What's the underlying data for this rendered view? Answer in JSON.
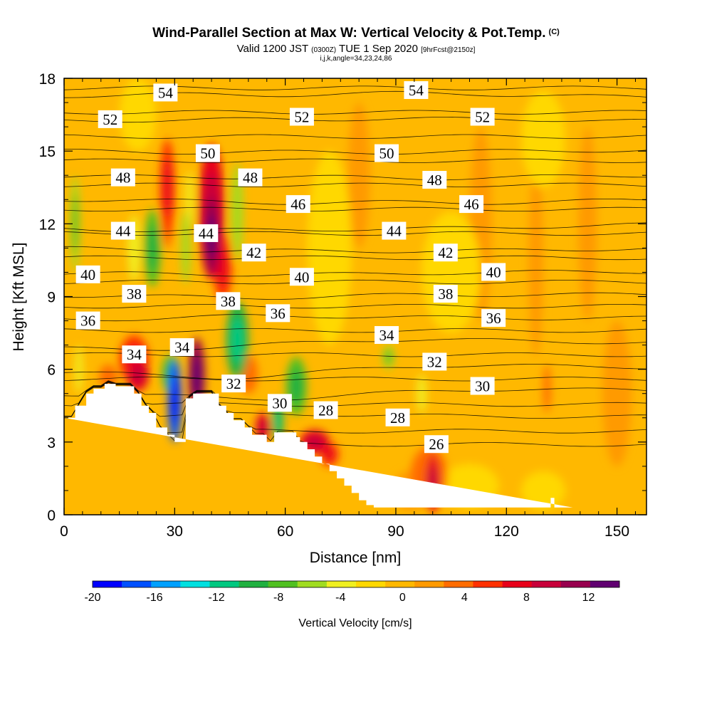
{
  "title": {
    "main": "Wind-Parallel Section at Max W: Vertical Velocity & Pot.Temp.",
    "copyright": "(C)",
    "valid_prefix": "Valid 1200 JST",
    "valid_utc": "(0300Z)",
    "valid_date": "TUE 1 Sep 2020",
    "forecast": "[9hrFcst@2150z]",
    "indices": "i,j,k,angle=34,23,24,86"
  },
  "chart_data": {
    "type": "heatmap",
    "xlabel": "Distance [nm]",
    "ylabel": "Height [Kft MSL]",
    "xlim": [
      0,
      158
    ],
    "ylim": [
      0,
      18
    ],
    "x_ticks": [
      0,
      30,
      60,
      90,
      120,
      150
    ],
    "y_ticks": [
      0,
      3,
      6,
      9,
      12,
      15,
      18
    ],
    "colorbar": {
      "title": "Vertical Velocity [cm/s]",
      "min": -20,
      "max": 14,
      "step": 2,
      "tick_values": [
        -20,
        -16,
        -12,
        -8,
        -4,
        0,
        4,
        8,
        12
      ],
      "colors": [
        "#0000ff",
        "#0050ff",
        "#00a0ff",
        "#00e0e0",
        "#00c880",
        "#20b040",
        "#50c020",
        "#a0dc20",
        "#f0f020",
        "#ffd800",
        "#ffb800",
        "#ff9a00",
        "#ff6c00",
        "#ff3000",
        "#e8001a",
        "#c8003a",
        "#98004e",
        "#600070"
      ]
    },
    "background_value_cm_s": 0,
    "terrain_profile": {
      "x": [
        0,
        3,
        3,
        6,
        6,
        8,
        8,
        11,
        11,
        14,
        14,
        19,
        19,
        21,
        21,
        23,
        23,
        25,
        25,
        26,
        26,
        28,
        28,
        30,
        30,
        32,
        32,
        33,
        33,
        35,
        35,
        42,
        42,
        44,
        44,
        46,
        46,
        49,
        49,
        51,
        51,
        53,
        53,
        55,
        55,
        57,
        57,
        59,
        59,
        63,
        63,
        64,
        64,
        66,
        66,
        68,
        68,
        70,
        70,
        72,
        72,
        74,
        74,
        76,
        76,
        78,
        78,
        80,
        80,
        82,
        82,
        84,
        84,
        86,
        86,
        88,
        88,
        110,
        110,
        132,
        132,
        133,
        133,
        138,
        138,
        158
      ],
      "height_kft": [
        4,
        4,
        4.5,
        4.5,
        5,
        5,
        5.2,
        5.2,
        5.4,
        5.4,
        5.3,
        5.3,
        5,
        5,
        4.5,
        4.5,
        4.2,
        4.2,
        3.6,
        3.6,
        3.6,
        3.6,
        3.3,
        3.3,
        3,
        3,
        3,
        3,
        4.8,
        4.8,
        5,
        5,
        4.5,
        4.5,
        4.2,
        4.2,
        3.9,
        3.9,
        3.6,
        3.6,
        3.3,
        3.3,
        3.3,
        3.3,
        3,
        3,
        3.4,
        3.4,
        3.4,
        3.4,
        3.2,
        3.2,
        3,
        3,
        2.7,
        2.7,
        2.4,
        2.4,
        2.1,
        2.1,
        1.8,
        1.8,
        1.5,
        1.5,
        1.2,
        1.2,
        0.9,
        0.9,
        0.6,
        0.6,
        0.4,
        0.4,
        0.3,
        0.3,
        0.3,
        0.3,
        0.3,
        0.3,
        0.3,
        0.3,
        0.7,
        0.7,
        0.3,
        0.3
      ]
    },
    "features": [
      {
        "x": 30,
        "y_kft": 4.7,
        "rx": 1.8,
        "ry_kft": 1.7,
        "w": -18
      },
      {
        "x": 29,
        "y_kft": 5.8,
        "rx": 2.5,
        "ry_kft": 0.8,
        "w": -8
      },
      {
        "x": 36,
        "y_kft": 5.7,
        "rx": 2.2,
        "ry_kft": 1.6,
        "w": 12
      },
      {
        "x": 40,
        "y_kft": 11.5,
        "rx": 2.2,
        "ry_kft": 1.6,
        "w": 12
      },
      {
        "x": 40,
        "y_kft": 12.5,
        "rx": 3.5,
        "ry_kft": 2.8,
        "w": 8
      },
      {
        "x": 43,
        "y_kft": 10.2,
        "rx": 2.5,
        "ry_kft": 1.4,
        "w": 6
      },
      {
        "x": 28,
        "y_kft": 13.5,
        "rx": 2.0,
        "ry_kft": 2.0,
        "w": 7
      },
      {
        "x": 28,
        "y_kft": 12.0,
        "rx": 1.5,
        "ry_kft": 1.0,
        "w": 5
      },
      {
        "x": 24,
        "y_kft": 11.0,
        "rx": 2.2,
        "ry_kft": 1.6,
        "w": -8
      },
      {
        "x": 19,
        "y_kft": 11.0,
        "rx": 1.6,
        "ry_kft": 1.4,
        "w": -4
      },
      {
        "x": 3,
        "y_kft": 12.0,
        "rx": 1.2,
        "ry_kft": 2.0,
        "w": -6
      },
      {
        "x": 4,
        "y_kft": 6.0,
        "rx": 1.0,
        "ry_kft": 1.0,
        "w": -4
      },
      {
        "x": 33,
        "y_kft": 11.0,
        "rx": 1.2,
        "ry_kft": 1.5,
        "w": -5
      },
      {
        "x": 34,
        "y_kft": 13.0,
        "rx": 1.0,
        "ry_kft": 1.2,
        "w": -4
      },
      {
        "x": 47,
        "y_kft": 7.2,
        "rx": 3.0,
        "ry_kft": 1.6,
        "w": -9
      },
      {
        "x": 47,
        "y_kft": 12.5,
        "rx": 1.5,
        "ry_kft": 2.0,
        "w": -5
      },
      {
        "x": 19,
        "y_kft": 6.4,
        "rx": 4.0,
        "ry_kft": 1.0,
        "w": 6
      },
      {
        "x": 20,
        "y_kft": 5.8,
        "rx": 3.0,
        "ry_kft": 0.7,
        "w": 8
      },
      {
        "x": 12,
        "y_kft": 5.7,
        "rx": 2.5,
        "ry_kft": 0.5,
        "w": 5
      },
      {
        "x": 50,
        "y_kft": 5.8,
        "rx": 2.5,
        "ry_kft": 0.8,
        "w": 5
      },
      {
        "x": 54,
        "y_kft": 3.6,
        "rx": 2.0,
        "ry_kft": 0.6,
        "w": 8
      },
      {
        "x": 58,
        "y_kft": 3.9,
        "rx": 1.5,
        "ry_kft": 0.9,
        "w": -10
      },
      {
        "x": 63,
        "y_kft": 5.3,
        "rx": 2.8,
        "ry_kft": 1.2,
        "w": -7
      },
      {
        "x": 68,
        "y_kft": 3.0,
        "rx": 4.0,
        "ry_kft": 0.5,
        "w": 8
      },
      {
        "x": 72,
        "y_kft": 2.5,
        "rx": 2.5,
        "ry_kft": 0.5,
        "w": 6
      },
      {
        "x": 100,
        "y_kft": 1.3,
        "rx": 2.0,
        "ry_kft": 1.2,
        "w": 8
      },
      {
        "x": 99,
        "y_kft": 1.6,
        "rx": 5.0,
        "ry_kft": 1.2,
        "w": 4
      },
      {
        "x": 94,
        "y_kft": 1.0,
        "rx": 5.0,
        "ry_kft": 0.8,
        "w": 2
      },
      {
        "x": 110,
        "y_kft": 1.2,
        "rx": 8.0,
        "ry_kft": 0.9,
        "w": -2
      },
      {
        "x": 130,
        "y_kft": 1.0,
        "rx": 6.0,
        "ry_kft": 0.8,
        "w": -2
      },
      {
        "x": 88,
        "y_kft": 6.5,
        "rx": 1.5,
        "ry_kft": 0.5,
        "w": -6
      },
      {
        "x": 97,
        "y_kft": 5.0,
        "rx": 1.2,
        "ry_kft": 0.8,
        "w": -4
      },
      {
        "x": 80,
        "y_kft": 14.0,
        "rx": 3.0,
        "ry_kft": 3.0,
        "w": 2
      },
      {
        "x": 113,
        "y_kft": 12.0,
        "rx": 3.0,
        "ry_kft": 4.0,
        "w": 2
      },
      {
        "x": 128,
        "y_kft": 10.5,
        "rx": 2.0,
        "ry_kft": 4.0,
        "w": 2
      },
      {
        "x": 142,
        "y_kft": 12.0,
        "rx": 2.5,
        "ry_kft": 4.0,
        "w": 2
      },
      {
        "x": 150,
        "y_kft": 5.0,
        "rx": 4.0,
        "ry_kft": 3.0,
        "w": 2
      },
      {
        "x": 131,
        "y_kft": 5.2,
        "rx": 1.0,
        "ry_kft": 1.0,
        "w": 5
      },
      {
        "x": 72,
        "y_kft": 11.0,
        "rx": 6.0,
        "ry_kft": 4.0,
        "w": -2
      },
      {
        "x": 105,
        "y_kft": 10.0,
        "rx": 8.0,
        "ry_kft": 2.5,
        "w": -2
      },
      {
        "x": 130,
        "y_kft": 15.5,
        "rx": 6.0,
        "ry_kft": 2.0,
        "w": -2
      },
      {
        "x": 20,
        "y_kft": 16.5,
        "rx": 5.0,
        "ry_kft": 1.5,
        "w": -2
      }
    ],
    "contour_labels": [
      {
        "value": "54",
        "x": 27.5,
        "y_kft": 17.4
      },
      {
        "value": "54",
        "x": 95.5,
        "y_kft": 17.5
      },
      {
        "value": "52",
        "x": 12.5,
        "y_kft": 16.3
      },
      {
        "value": "52",
        "x": 64.5,
        "y_kft": 16.4
      },
      {
        "value": "52",
        "x": 113.5,
        "y_kft": 16.4
      },
      {
        "value": "50",
        "x": 39.0,
        "y_kft": 14.9
      },
      {
        "value": "50",
        "x": 87.5,
        "y_kft": 14.9
      },
      {
        "value": "48",
        "x": 16.0,
        "y_kft": 13.9
      },
      {
        "value": "48",
        "x": 50.5,
        "y_kft": 13.9
      },
      {
        "value": "48",
        "x": 100.5,
        "y_kft": 13.8
      },
      {
        "value": "46",
        "x": 63.5,
        "y_kft": 12.8
      },
      {
        "value": "46",
        "x": 110.5,
        "y_kft": 12.8
      },
      {
        "value": "44",
        "x": 16.0,
        "y_kft": 11.7
      },
      {
        "value": "44",
        "x": 38.5,
        "y_kft": 11.6
      },
      {
        "value": "44",
        "x": 89.5,
        "y_kft": 11.7
      },
      {
        "value": "42",
        "x": 51.5,
        "y_kft": 10.8
      },
      {
        "value": "42",
        "x": 103.5,
        "y_kft": 10.8
      },
      {
        "value": "40",
        "x": 6.5,
        "y_kft": 9.9
      },
      {
        "value": "40",
        "x": 64.5,
        "y_kft": 9.8
      },
      {
        "value": "40",
        "x": 116.5,
        "y_kft": 10.0
      },
      {
        "value": "38",
        "x": 19.0,
        "y_kft": 9.1
      },
      {
        "value": "38",
        "x": 44.5,
        "y_kft": 8.8
      },
      {
        "value": "38",
        "x": 103.5,
        "y_kft": 9.1
      },
      {
        "value": "36",
        "x": 6.5,
        "y_kft": 8.0
      },
      {
        "value": "36",
        "x": 58.0,
        "y_kft": 8.3
      },
      {
        "value": "36",
        "x": 116.5,
        "y_kft": 8.1
      },
      {
        "value": "34",
        "x": 19.0,
        "y_kft": 6.6
      },
      {
        "value": "34",
        "x": 32.0,
        "y_kft": 6.9
      },
      {
        "value": "34",
        "x": 87.5,
        "y_kft": 7.4
      },
      {
        "value": "32",
        "x": 46.0,
        "y_kft": 5.4
      },
      {
        "value": "32",
        "x": 100.5,
        "y_kft": 6.3
      },
      {
        "value": "30",
        "x": 58.5,
        "y_kft": 4.6
      },
      {
        "value": "30",
        "x": 113.5,
        "y_kft": 5.3
      },
      {
        "value": "28",
        "x": 71.0,
        "y_kft": 4.3
      },
      {
        "value": "28",
        "x": 90.5,
        "y_kft": 4.0
      },
      {
        "value": "26",
        "x": 101.0,
        "y_kft": 2.9
      }
    ],
    "contour_levels": {
      "min": 26,
      "max": 55,
      "interval": 1
    }
  }
}
